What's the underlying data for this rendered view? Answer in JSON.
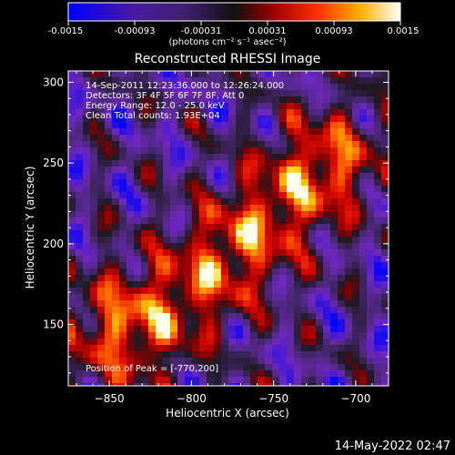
{
  "colorbar": {
    "min_label": "-0.0015",
    "tick_labels": [
      "-0.0015",
      "-0.00093",
      "-0.00031",
      "0.00031",
      "0.00093",
      "0.0015"
    ],
    "unit_label": "(photons cm⁻² s⁻¹ asec⁻²)"
  },
  "chart_data": {
    "type": "heatmap",
    "title": "Reconstructed RHESSI Image",
    "xlabel": "Heliocentric X (arcsec)",
    "ylabel": "Heliocentric Y (arcsec)",
    "xlim": [
      -875,
      -680
    ],
    "ylim": [
      112,
      307
    ],
    "x_ticks": [
      -850,
      -800,
      -750,
      -700
    ],
    "y_ticks": [
      150,
      200,
      250,
      300
    ],
    "x_tick_labels": [
      "−850",
      "−800",
      "−750",
      "−700"
    ],
    "y_tick_labels": [
      "150",
      "200",
      "250",
      "300"
    ],
    "value_range": [
      -0.0015,
      0.0015
    ],
    "peak_position": [
      -770,
      200
    ],
    "info_lines": [
      "14-Sep-2011 12:23:36.000 to 12:26:24.000",
      "Detectors: 3F 4F 5F 6F 7F 8F, Att 0",
      "Energy Range: 12.0 - 25.0 keV",
      "Clean     Total counts: 1.93E+04"
    ],
    "peak_text": "Position of Peak = [-770,200]",
    "colormap": [
      "#0000ff",
      "#7a2fbf",
      "#3a2a60",
      "#222222",
      "#8a0000",
      "#e00000",
      "#ff6a00",
      "#ffd000",
      "#ffffff"
    ]
  },
  "footer": {
    "timestamp": "14-May-2022 02:47"
  }
}
